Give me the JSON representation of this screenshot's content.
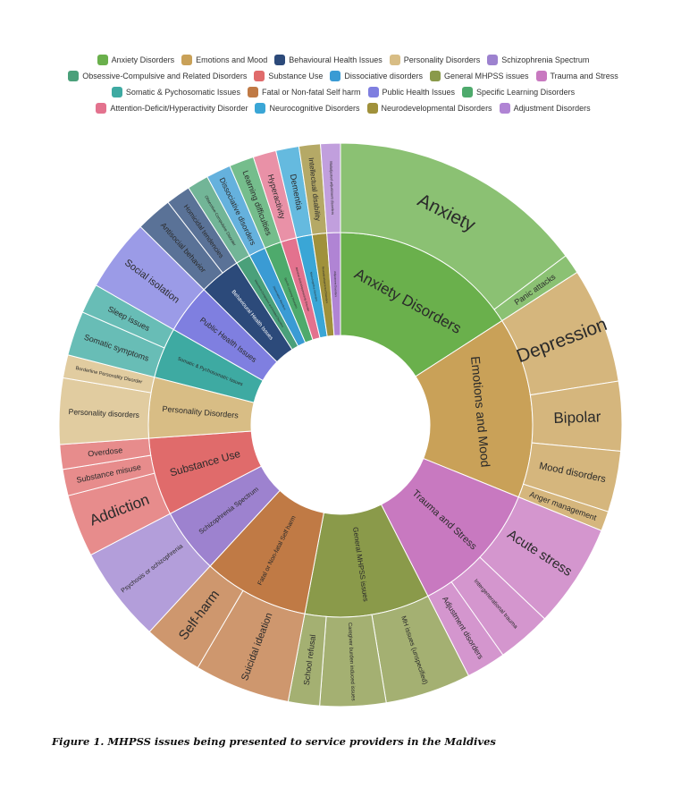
{
  "caption": "Figure 1. MHPSS issues being presented to service providers in the Maldives",
  "chart_data": {
    "type": "sunburst",
    "title": "",
    "unit": "relative share (% of all mentions, estimated from arc angles)",
    "legend_rows": [
      [
        {
          "label": "Anxiety Disorders",
          "color": "#6ab04c"
        },
        {
          "label": "Emotions and Mood",
          "color": "#c9a158"
        },
        {
          "label": "Behavioural Health Issues",
          "color": "#2c4a7a"
        },
        {
          "label": "Personality Disorders",
          "color": "#d8bd85"
        },
        {
          "label": "Schizophrenia Spectrum",
          "color": "#9d82cf"
        }
      ],
      [
        {
          "label": "Obsessive-Compulsive and Related Disorders",
          "color": "#4aa07a"
        },
        {
          "label": "Substance Use",
          "color": "#e06b6b"
        },
        {
          "label": "Dissociative disorders",
          "color": "#3a9bd4"
        },
        {
          "label": "General MHPSS issues",
          "color": "#8a9a4a"
        },
        {
          "label": "Trauma and Stress",
          "color": "#c879c0"
        }
      ],
      [
        {
          "label": "Somatic & Pychosomatic Issues",
          "color": "#3eaaa2"
        },
        {
          "label": "Fatal or Non-fatal Self harm",
          "color": "#c07a45"
        },
        {
          "label": "Public Health Issues",
          "color": "#7f7fe0"
        },
        {
          "label": "Specific Learning Disorders",
          "color": "#4eaa6c"
        }
      ],
      [
        {
          "label": "Attention-Deficit/Hyperactivity Disorder",
          "color": "#e3728e"
        },
        {
          "label": "Neurocognitive Disorders",
          "color": "#3aa6d6"
        },
        {
          "label": "Neurodevelopmental Disorders",
          "color": "#a0913b"
        },
        {
          "label": "Adjustment Disorders",
          "color": "#b084d4"
        }
      ]
    ],
    "categories": [
      {
        "name": "Anxiety Disorders",
        "color": "#6ab04c",
        "fontSize": 17,
        "children": [
          {
            "name": "Anxiety",
            "value": 15.6,
            "fontSize": 21
          },
          {
            "name": "Panic attacks",
            "value": 1.2,
            "fontSize": 9
          }
        ]
      },
      {
        "name": "Emotions and Mood",
        "color": "#c9a158",
        "fontSize": 14,
        "children": [
          {
            "name": "Depression",
            "value": 7.0,
            "fontSize": 21
          },
          {
            "name": "Bipolar",
            "value": 4.2,
            "fontSize": 17
          },
          {
            "name": "Mood disorders",
            "value": 3.7,
            "fontSize": 11
          },
          {
            "name": "Anger management",
            "value": 1.2,
            "fontSize": 9
          }
        ]
      },
      {
        "name": "Trauma and Stress",
        "color": "#c879c0",
        "fontSize": 11,
        "children": [
          {
            "name": "Acute stress",
            "value": 6.3,
            "fontSize": 15
          },
          {
            "name": "Intergenerational trauma",
            "value": 3.3,
            "fontSize": 6.5
          },
          {
            "name": "Adjustment disorders",
            "value": 2.4,
            "fontSize": 8.5
          }
        ]
      },
      {
        "name": "General MHPSS issues",
        "color": "#8a9a4a",
        "fontSize": 8,
        "children": [
          {
            "name": "MH issues (unspecified)",
            "value": 5.2,
            "fontSize": 7.5
          },
          {
            "name": "Caregiver burden induced issues",
            "value": 4.0,
            "fontSize": 6
          },
          {
            "name": "School refusal",
            "value": 1.9,
            "fontSize": 9
          }
        ]
      },
      {
        "name": "Fatal or Non-fatal Self harm",
        "color": "#c07a45",
        "fontSize": 7,
        "children": [
          {
            "name": "Suicidal ideation",
            "value": 5.8,
            "fontSize": 11
          },
          {
            "name": "Self-harm",
            "value": 3.6,
            "fontSize": 15
          }
        ]
      },
      {
        "name": "Schizophrenia Spectrum",
        "color": "#9d82cf",
        "fontSize": 7.5,
        "children": [
          {
            "name": "Psychosis or schizophrenia",
            "value": 5.8,
            "fontSize": 7
          }
        ]
      },
      {
        "name": "Substance Use",
        "color": "#e06b6b",
        "fontSize": 12,
        "children": [
          {
            "name": "Addiction",
            "value": 3.8,
            "fontSize": 17
          },
          {
            "name": "Substance misuse",
            "value": 1.6,
            "fontSize": 9
          },
          {
            "name": "Overdose",
            "value": 1.5,
            "fontSize": 9
          }
        ]
      },
      {
        "name": "Personality Disorders",
        "color": "#d8bd85",
        "fontSize": 9,
        "children": [
          {
            "name": "Personality disorders",
            "value": 4.0,
            "fontSize": 8.5
          },
          {
            "name": "Borderline Personality Disorder",
            "value": 1.4,
            "fontSize": 5.5
          }
        ]
      },
      {
        "name": "Somatic & Pychosomatic Issues",
        "color": "#3eaaa2",
        "fontSize": 5.5,
        "children": [
          {
            "name": "Somatic symptoms",
            "value": 2.7,
            "fontSize": 9
          },
          {
            "name": "Sleep issues",
            "value": 1.8,
            "fontSize": 9
          }
        ]
      },
      {
        "name": "Public Health Issues",
        "color": "#7f7fe0",
        "fontSize": 8.5,
        "children": [
          {
            "name": "Social isolation",
            "value": 4.4,
            "fontSize": 11
          }
        ]
      },
      {
        "name": "Behavioural Health Issues",
        "color": "#2c4a7a",
        "fontSize": 6,
        "children": [
          {
            "name": "Antisocial behavior",
            "value": 2.2,
            "fontSize": 8.5
          },
          {
            "name": "Homicidal tendencies",
            "value": 1.5,
            "fontSize": 7.5
          }
        ]
      },
      {
        "name": "Obsessive-Compulsive and Related Disorders",
        "color": "#4aa07a",
        "fontSize": 3,
        "children": [
          {
            "name": "Obsessive-Compulsive Disorder",
            "value": 1.3,
            "fontSize": 4.5
          }
        ]
      },
      {
        "name": "Dissociative disorders",
        "color": "#3a9bd4",
        "fontSize": 3,
        "children": [
          {
            "name": "Dissociative disorders",
            "value": 1.5,
            "fontSize": 8.5
          }
        ]
      },
      {
        "name": "Specific Learning Disorders",
        "color": "#4eaa6c",
        "fontSize": 3,
        "children": [
          {
            "name": "Learning difficulties",
            "value": 1.5,
            "fontSize": 9
          }
        ]
      },
      {
        "name": "Attention-Deficit/Hyperactivity Disorder",
        "color": "#e3728e",
        "fontSize": 3,
        "children": [
          {
            "name": "Hyperactivity",
            "value": 1.4,
            "fontSize": 9
          }
        ]
      },
      {
        "name": "Neurocognitive Disorders",
        "color": "#3aa6d6",
        "fontSize": 3,
        "children": [
          {
            "name": "Dementia",
            "value": 1.4,
            "fontSize": 9.5
          }
        ]
      },
      {
        "name": "Neurodevelopmental Disorders",
        "color": "#a0913b",
        "fontSize": 3,
        "children": [
          {
            "name": "Intellectual disability",
            "value": 1.3,
            "fontSize": 8
          }
        ]
      },
      {
        "name": "Adjustment Disorders",
        "color": "#b084d4",
        "fontSize": 3,
        "children": [
          {
            "name": "Maladjusted adjustment disorders",
            "value": 1.2,
            "fontSize": 4
          }
        ]
      }
    ]
  }
}
